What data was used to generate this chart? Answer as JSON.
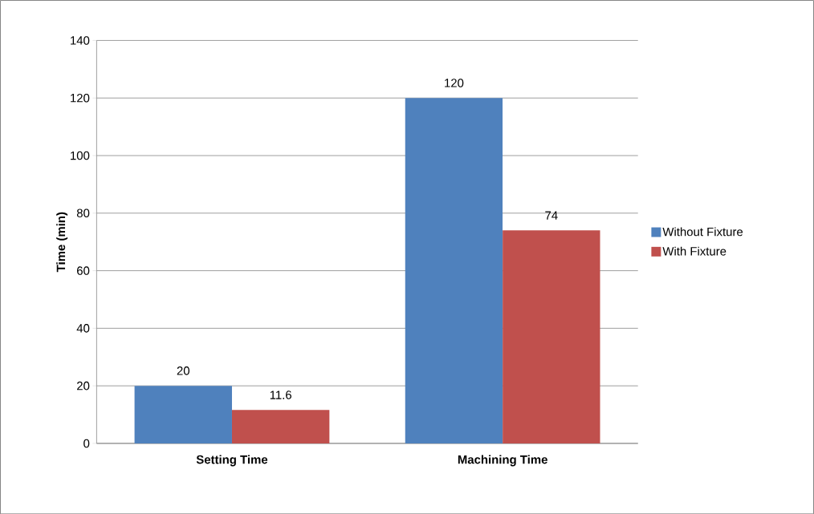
{
  "chart_data": {
    "type": "bar",
    "ylabel": "Time (min)",
    "categories": [
      "Setting Time",
      "Machining Time"
    ],
    "series": [
      {
        "name": "Without Fixture",
        "color": "#4f81bd",
        "values": [
          20,
          120
        ]
      },
      {
        "name": "With Fixture",
        "color": "#c0504d",
        "values": [
          11.6,
          74
        ]
      }
    ],
    "ylim": [
      0,
      140
    ],
    "yticks": [
      0,
      20,
      40,
      60,
      80,
      100,
      120,
      140
    ],
    "grid": "y",
    "legend": "right",
    "data_labels": true
  }
}
